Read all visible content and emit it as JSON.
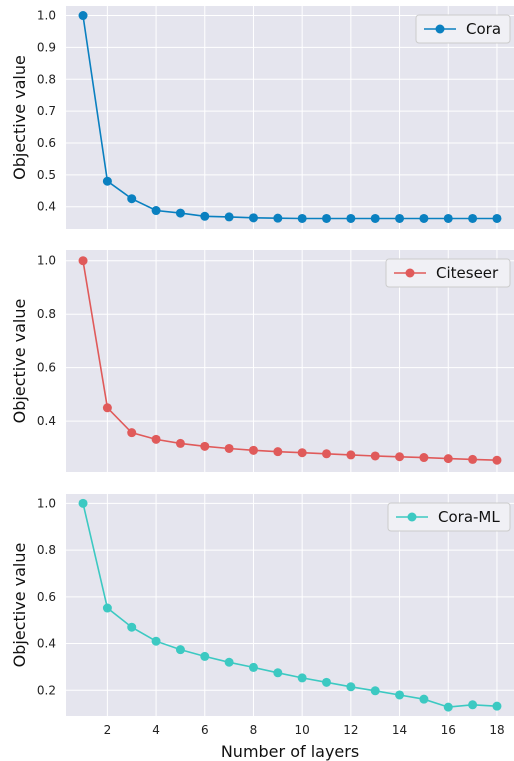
{
  "chart_data": [
    {
      "type": "line",
      "legend": "Cora",
      "legend_position": "top-right",
      "color": "#0a80c0",
      "xlabel": "",
      "ylabel": "Objective value",
      "grid": true,
      "xlim": [
        0.3,
        18.7
      ],
      "ylim": [
        0.33,
        1.03
      ],
      "yticks": [
        0.4,
        0.5,
        0.6,
        0.7,
        0.8,
        0.9,
        1.0
      ],
      "ytick_labels": [
        "0.4",
        "0.5",
        "0.6",
        "0.7",
        "0.8",
        "0.9",
        "1.0"
      ],
      "xticks": [
        2,
        4,
        6,
        8,
        10,
        12,
        14,
        16,
        18
      ],
      "xtick_labels": [],
      "x": [
        1,
        2,
        3,
        4,
        5,
        6,
        7,
        8,
        9,
        10,
        11,
        12,
        13,
        14,
        15,
        16,
        17,
        18
      ],
      "y": [
        1.0,
        0.48,
        0.425,
        0.388,
        0.38,
        0.37,
        0.368,
        0.365,
        0.364,
        0.363,
        0.363,
        0.363,
        0.363,
        0.363,
        0.363,
        0.363,
        0.363,
        0.363
      ]
    },
    {
      "type": "line",
      "legend": "Citeseer",
      "legend_position": "top-right",
      "color": "#e05a5a",
      "xlabel": "",
      "ylabel": "Objective value",
      "grid": true,
      "xlim": [
        0.3,
        18.7
      ],
      "ylim": [
        0.21,
        1.04
      ],
      "yticks": [
        0.4,
        0.6,
        0.8,
        1.0
      ],
      "ytick_labels": [
        "0.4",
        "0.6",
        "0.8",
        "1.0"
      ],
      "xticks": [
        2,
        4,
        6,
        8,
        10,
        12,
        14,
        16,
        18
      ],
      "xtick_labels": [],
      "x": [
        1,
        2,
        3,
        4,
        5,
        6,
        7,
        8,
        9,
        10,
        11,
        12,
        13,
        14,
        15,
        16,
        17,
        18
      ],
      "y": [
        1.0,
        0.45,
        0.357,
        0.332,
        0.317,
        0.306,
        0.298,
        0.291,
        0.286,
        0.282,
        0.278,
        0.274,
        0.27,
        0.267,
        0.264,
        0.26,
        0.257,
        0.254
      ]
    },
    {
      "type": "line",
      "legend": "Cora-ML",
      "legend_position": "top-right",
      "color": "#3cc9c2",
      "xlabel": "Number of layers",
      "ylabel": "Objective value",
      "grid": true,
      "xlim": [
        0.3,
        18.7
      ],
      "ylim": [
        0.09,
        1.04
      ],
      "yticks": [
        0.2,
        0.4,
        0.6,
        0.8,
        1.0
      ],
      "ytick_labels": [
        "0.2",
        "0.4",
        "0.6",
        "0.8",
        "1.0"
      ],
      "xticks": [
        2,
        4,
        6,
        8,
        10,
        12,
        14,
        16,
        18
      ],
      "xtick_labels": [
        "2",
        "4",
        "6",
        "8",
        "10",
        "12",
        "14",
        "16",
        "18"
      ],
      "x": [
        1,
        2,
        3,
        4,
        5,
        6,
        7,
        8,
        9,
        10,
        11,
        12,
        13,
        14,
        15,
        16,
        17,
        18
      ],
      "y": [
        1.0,
        0.552,
        0.47,
        0.41,
        0.374,
        0.345,
        0.32,
        0.298,
        0.275,
        0.253,
        0.234,
        0.215,
        0.198,
        0.18,
        0.162,
        0.128,
        0.138,
        0.132
      ]
    }
  ]
}
